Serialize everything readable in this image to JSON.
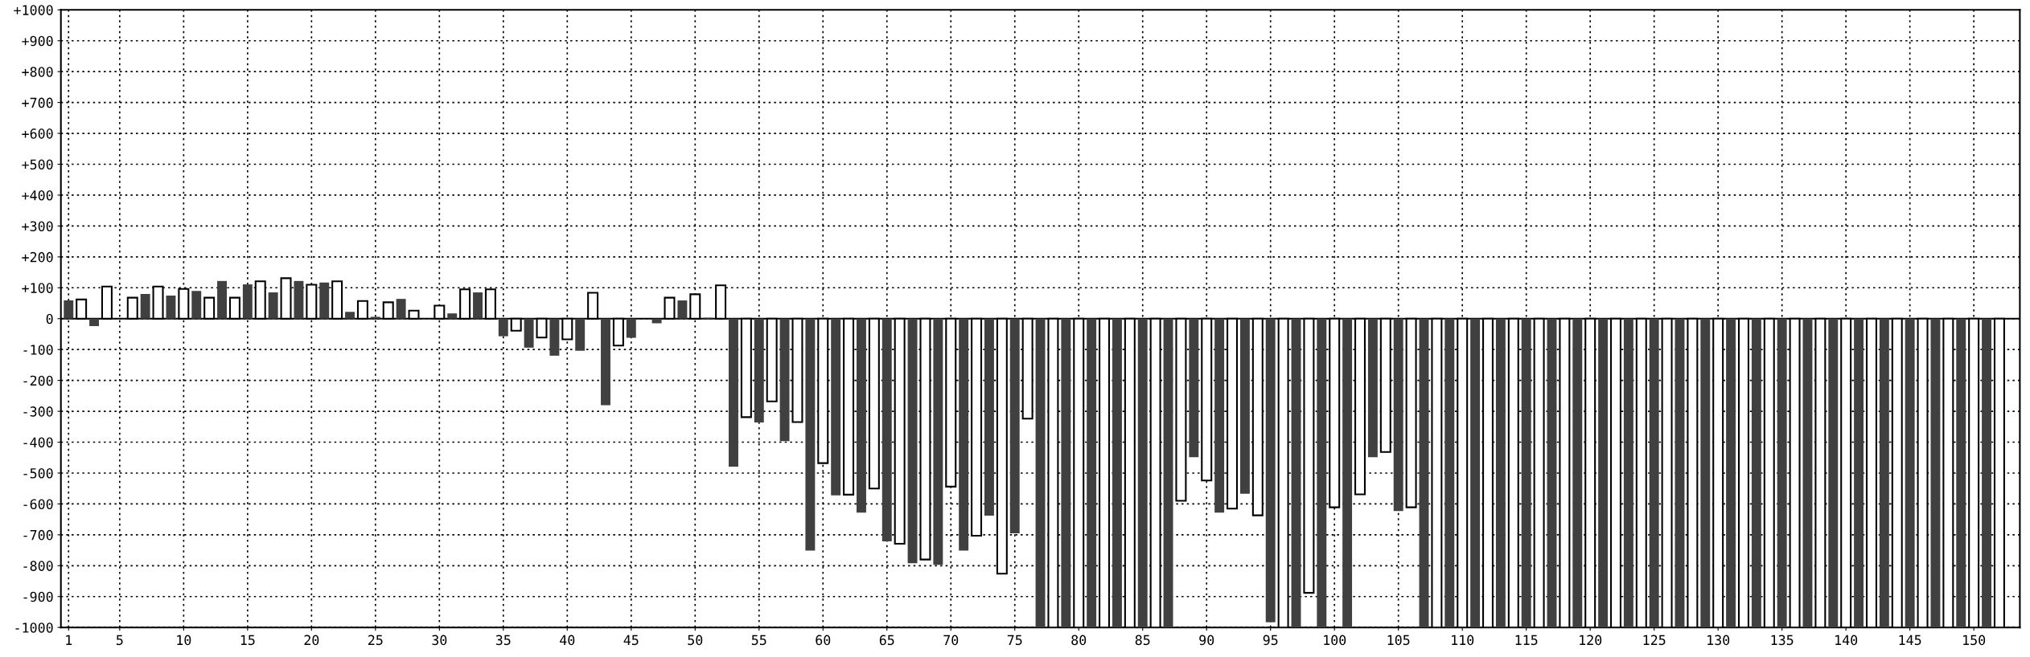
{
  "chart_data": {
    "type": "bar",
    "x": [
      1,
      2,
      3,
      4,
      5,
      6,
      7,
      8,
      9,
      10,
      11,
      12,
      13,
      14,
      15,
      16,
      17,
      18,
      19,
      20,
      21,
      22,
      23,
      24,
      25,
      26,
      27,
      28,
      29,
      30,
      31,
      32,
      33,
      34,
      35,
      36,
      37,
      38,
      39,
      40,
      41,
      42,
      43,
      44,
      45,
      46,
      47,
      48,
      49,
      50,
      51,
      52,
      53,
      54,
      55,
      56,
      57,
      58,
      59,
      60,
      61,
      62,
      63,
      64,
      65,
      66,
      67,
      68,
      69,
      70,
      71,
      72,
      73,
      74,
      75,
      76,
      77,
      78,
      79,
      80,
      81,
      82,
      83,
      84,
      85,
      86,
      87,
      88,
      89,
      90,
      91,
      92,
      93,
      94,
      95,
      96,
      97,
      98,
      99,
      100,
      101,
      102,
      103,
      104,
      105,
      106,
      107,
      108,
      109,
      110,
      111,
      112,
      113,
      114,
      115,
      116,
      117,
      118,
      119,
      120,
      121,
      122,
      123,
      124,
      125,
      126,
      127,
      128,
      129,
      130,
      131,
      132,
      133,
      134,
      135,
      136,
      137,
      138,
      139,
      140,
      141,
      142,
      143,
      144,
      145,
      146,
      147,
      148,
      149,
      150,
      151,
      152
    ],
    "values": [
      59,
      62,
      -24,
      104,
      null,
      68,
      80,
      104,
      75,
      96,
      90,
      68,
      122,
      68,
      111,
      121,
      85,
      131,
      122,
      110,
      117,
      121,
      22,
      57,
      6,
      53,
      64,
      26,
      null,
      42,
      17,
      95,
      85,
      95,
      -57,
      -39,
      -94,
      -61,
      -120,
      -67,
      -104,
      84,
      -280,
      -87,
      -62,
      null,
      -15,
      68,
      59,
      79,
      3,
      108,
      -479,
      -319,
      -336,
      -268,
      -397,
      -335,
      -751,
      -468,
      -572,
      -570,
      -628,
      -550,
      -721,
      -729,
      -792,
      -780,
      -797,
      -544,
      -751,
      -703,
      -638,
      -826,
      -695,
      -324,
      -1000,
      -1000,
      -1000,
      -1000,
      -1000,
      -1000,
      -1000,
      -1000,
      -1000,
      -1000,
      -1000,
      -590,
      -449,
      -524,
      -628,
      -615,
      -567,
      -637,
      -983,
      -1000,
      -1000,
      -888,
      -1000,
      -611,
      -1000,
      -569,
      -449,
      -432,
      -623,
      -611,
      -1000,
      -1000,
      -1000,
      -1000,
      -1000,
      -1000,
      -1000,
      -1000,
      -1000,
      -1000,
      -1000,
      -1000,
      -1000,
      -1000,
      -1000,
      -1000,
      -1000,
      -1000,
      -1000,
      -1000,
      -1000,
      -1000,
      -1000,
      -1000,
      -1000,
      -1000,
      -1000,
      -1000,
      -1000,
      -1000,
      -1000,
      -1000,
      -1000,
      -1000,
      -1000,
      -1000,
      -1000,
      -1000,
      -1000,
      -1000,
      -1000,
      -1000,
      -1000,
      -1000,
      -1000,
      -1000
    ],
    "colors": [
      "#404040",
      "#ffffff",
      "#404040",
      "#ffffff",
      "#404040",
      "#ffffff",
      "#404040",
      "#ffffff",
      "#404040",
      "#ffffff",
      "#404040",
      "#ffffff",
      "#404040",
      "#ffffff",
      "#404040",
      "#ffffff",
      "#404040",
      "#ffffff",
      "#404040",
      "#ffffff",
      "#404040",
      "#ffffff",
      "#404040",
      "#ffffff",
      "#404040",
      "#ffffff",
      "#404040",
      "#ffffff",
      "#404040",
      "#ffffff",
      "#404040",
      "#ffffff",
      "#404040",
      "#ffffff",
      "#404040",
      "#ffffff",
      "#404040",
      "#ffffff",
      "#404040",
      "#ffffff",
      "#404040",
      "#ffffff",
      "#404040",
      "#ffffff",
      "#404040",
      "#ffffff",
      "#404040",
      "#ffffff",
      "#404040",
      "#ffffff",
      "#404040",
      "#ffffff",
      "#404040",
      "#ffffff",
      "#404040",
      "#ffffff",
      "#404040",
      "#ffffff",
      "#404040",
      "#ffffff",
      "#404040",
      "#ffffff",
      "#404040",
      "#ffffff",
      "#404040",
      "#ffffff",
      "#404040",
      "#ffffff",
      "#404040",
      "#ffffff",
      "#404040",
      "#ffffff",
      "#404040",
      "#ffffff",
      "#404040",
      "#ffffff",
      "#404040",
      "#ffffff",
      "#404040",
      "#ffffff",
      "#404040",
      "#ffffff",
      "#404040",
      "#ffffff",
      "#404040",
      "#ffffff",
      "#404040",
      "#ffffff",
      "#404040",
      "#ffffff",
      "#404040",
      "#ffffff",
      "#404040",
      "#ffffff",
      "#404040",
      "#ffffff",
      "#404040",
      "#ffffff",
      "#404040",
      "#ffffff",
      "#404040",
      "#ffffff",
      "#404040",
      "#ffffff",
      "#404040",
      "#ffffff",
      "#404040",
      "#ffffff",
      "#404040",
      "#ffffff",
      "#404040",
      "#ffffff",
      "#404040",
      "#ffffff",
      "#404040",
      "#ffffff",
      "#404040",
      "#ffffff",
      "#404040",
      "#ffffff",
      "#404040",
      "#ffffff",
      "#404040",
      "#ffffff",
      "#404040",
      "#ffffff",
      "#404040",
      "#ffffff",
      "#404040",
      "#ffffff",
      "#404040",
      "#ffffff",
      "#404040",
      "#ffffff",
      "#404040",
      "#ffffff",
      "#404040",
      "#ffffff",
      "#404040",
      "#ffffff",
      "#404040",
      "#ffffff",
      "#404040",
      "#ffffff",
      "#404040",
      "#ffffff",
      "#404040",
      "#ffffff",
      "#404040",
      "#ffffff",
      "#404040",
      "#ffffff"
    ],
    "xlim": [
      0.4,
      153.6
    ],
    "xticks": [
      1,
      5,
      10,
      15,
      20,
      25,
      30,
      35,
      40,
      45,
      50,
      55,
      60,
      65,
      70,
      75,
      80,
      85,
      90,
      95,
      100,
      105,
      110,
      115,
      120,
      125,
      130,
      135,
      140,
      145,
      150
    ],
    "ylim": [
      -1000,
      1000
    ],
    "yticks": [
      {
        "value": 1000,
        "label": "+1000"
      },
      {
        "value": 900,
        "label": "+900"
      },
      {
        "value": 800,
        "label": "+800"
      },
      {
        "value": 700,
        "label": "+700"
      },
      {
        "value": 600,
        "label": "+600"
      },
      {
        "value": 500,
        "label": "+500"
      },
      {
        "value": 400,
        "label": "+400"
      },
      {
        "value": 300,
        "label": "+300"
      },
      {
        "value": 200,
        "label": "+200"
      },
      {
        "value": 100,
        "label": "+100"
      },
      0,
      -100,
      -200,
      -300,
      -400,
      -500,
      -600,
      -700,
      -800,
      -900,
      -1000
    ],
    "ref_lines": [
      {
        "axis": "y",
        "value": 0,
        "color": "#000000",
        "line_style": "solid"
      }
    ],
    "grid": true
  }
}
